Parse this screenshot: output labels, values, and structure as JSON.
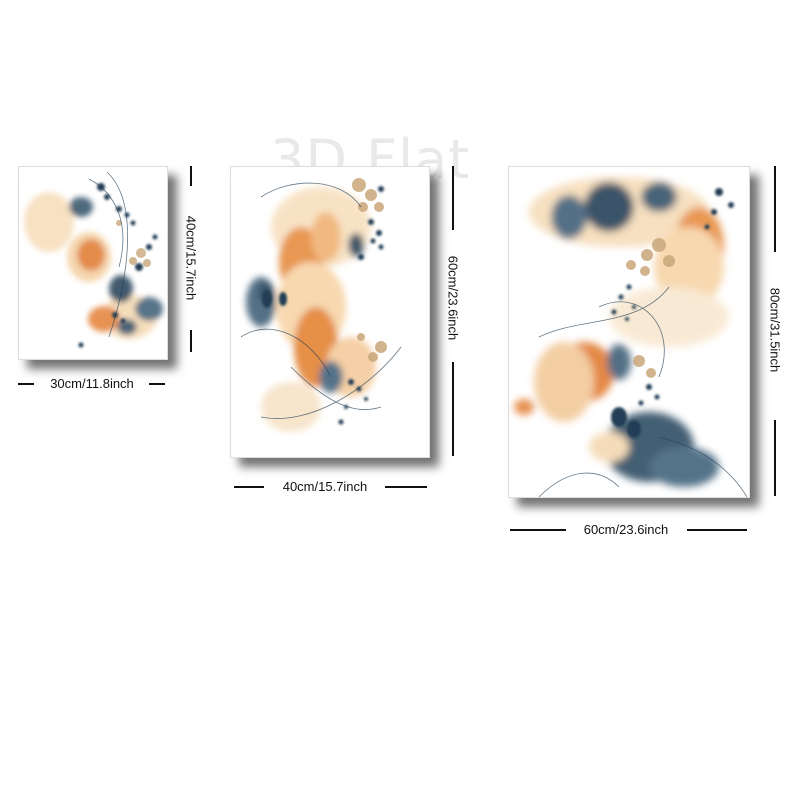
{
  "watermark": "3D Flat",
  "panels": [
    {
      "width_label": "30cm/11.8inch",
      "height_label": "40cm/15.7inch"
    },
    {
      "width_label": "40cm/15.7inch",
      "height_label": "60cm/23.6inch"
    },
    {
      "width_label": "60cm/23.6inch",
      "height_label": "80cm/31.5inch"
    }
  ],
  "colors": {
    "navy": "#223e55",
    "orange": "#e0782a",
    "peach": "#f2c897",
    "sand": "#c9a77a",
    "background": "#ffffff"
  }
}
